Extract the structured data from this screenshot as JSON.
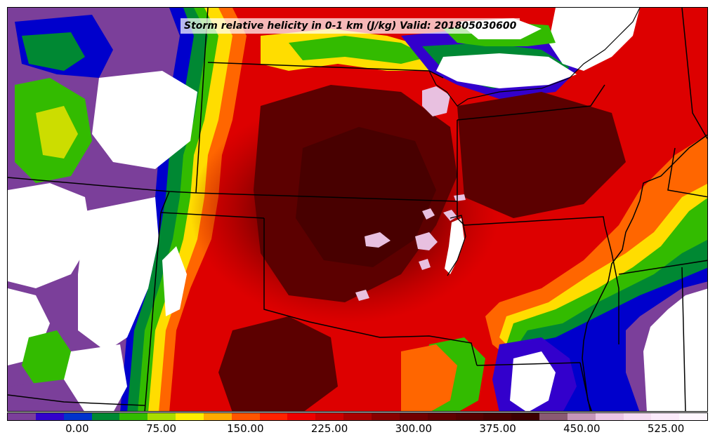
{
  "title": "Storm relative helicity in 0-1 km (J/kg) Valid: 201805030600",
  "colorbar": {
    "levels": [
      -50,
      -25,
      0,
      25,
      50,
      75,
      100,
      125,
      150,
      175,
      200,
      225,
      250,
      275,
      300,
      325,
      350,
      375,
      400,
      425,
      450,
      475,
      500,
      525,
      550
    ],
    "colors": [
      "#7b3f9a",
      "#3300cc",
      "#0033cc",
      "#008833",
      "#33bb00",
      "#aadd00",
      "#ffee00",
      "#ffaa00",
      "#ff5500",
      "#ff2200",
      "#ee0000",
      "#cc0000",
      "#aa0000",
      "#880000",
      "#700000",
      "#600000",
      "#540000",
      "#480000",
      "#3c0000",
      "#8a5a72",
      "#c696b8",
      "#ecc6e4",
      "#f6dcf2",
      "#fbeafa",
      "#fef6fe"
    ],
    "tick_labels": [
      "0.00",
      "75.00",
      "150.00",
      "225.00",
      "300.00",
      "375.00",
      "450.00",
      "525.00"
    ],
    "tick_values": [
      0,
      75,
      150,
      225,
      300,
      375,
      450,
      525
    ]
  }
}
